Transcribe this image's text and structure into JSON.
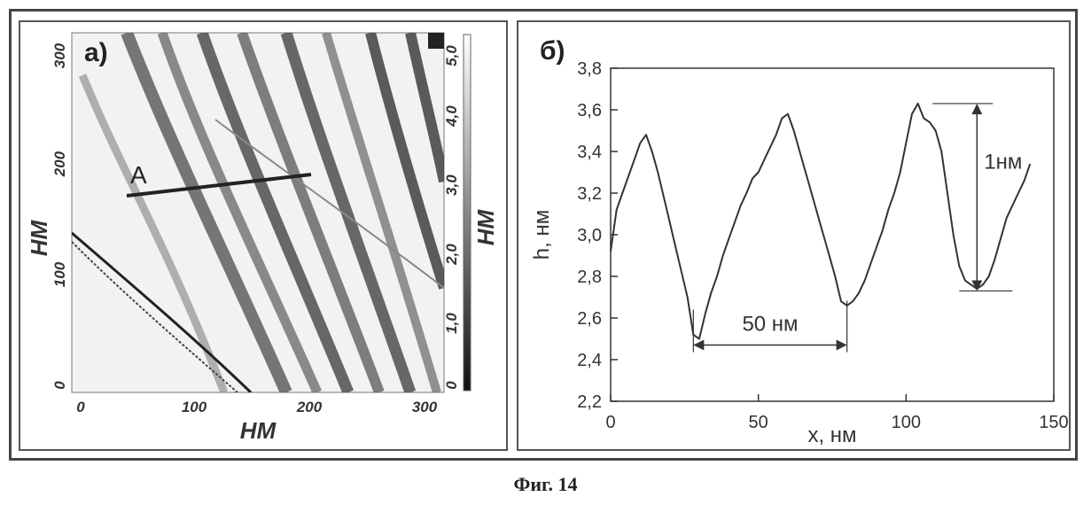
{
  "caption": "Фиг. 14",
  "panel_a": {
    "label": "а)",
    "profile_marker": "А",
    "x_axis": {
      "label": "НМ",
      "ticks": [
        "0",
        "100",
        "200",
        "300"
      ]
    },
    "y_axis": {
      "label": "НМ",
      "ticks": [
        "0",
        "100",
        "200",
        "300"
      ]
    },
    "colorbar": {
      "label": "НМ",
      "ticks": [
        "0",
        "1,0",
        "2,0",
        "3,0",
        "4,0",
        "5,0"
      ]
    }
  },
  "chart_data": {
    "type": "line",
    "panel_label": "б)",
    "xlabel": "x, нм",
    "ylabel": "h, нм",
    "xlim": [
      0,
      150
    ],
    "ylim": [
      2.2,
      3.8
    ],
    "x_ticks": [
      0,
      50,
      100,
      150
    ],
    "x_tick_labels": [
      "0",
      "50",
      "100",
      "150"
    ],
    "y_ticks": [
      2.2,
      2.4,
      2.6,
      2.8,
      3.0,
      3.2,
      3.4,
      3.6,
      3.8
    ],
    "y_tick_labels": [
      "2,2",
      "2,4",
      "2,6",
      "2,8",
      "3,0",
      "3,2",
      "3,4",
      "3,6",
      "3,8"
    ],
    "series": [
      {
        "x": [
          0,
          2,
          4,
          6,
          8,
          10,
          12,
          14,
          16,
          18,
          20,
          22,
          24,
          26,
          28,
          30,
          32,
          34,
          36,
          38,
          40,
          42,
          44,
          46,
          48,
          50,
          52,
          54,
          56,
          58,
          60,
          62,
          64,
          66,
          68,
          70,
          72,
          74,
          76,
          78,
          80,
          82,
          84,
          86,
          88,
          90,
          92,
          94,
          96,
          98,
          100,
          102,
          104,
          106,
          108,
          110,
          112,
          114,
          116,
          118,
          120,
          122,
          124,
          126,
          128,
          130,
          132,
          134,
          136,
          138,
          140,
          142
        ],
        "y": [
          2.92,
          3.12,
          3.2,
          3.28,
          3.36,
          3.44,
          3.48,
          3.4,
          3.3,
          3.18,
          3.06,
          2.94,
          2.82,
          2.7,
          2.52,
          2.5,
          2.62,
          2.72,
          2.8,
          2.9,
          2.98,
          3.06,
          3.14,
          3.2,
          3.27,
          3.3,
          3.36,
          3.42,
          3.48,
          3.56,
          3.58,
          3.5,
          3.4,
          3.3,
          3.2,
          3.1,
          3.0,
          2.9,
          2.8,
          2.68,
          2.66,
          2.68,
          2.72,
          2.78,
          2.86,
          2.94,
          3.02,
          3.12,
          3.2,
          3.3,
          3.44,
          3.58,
          3.63,
          3.56,
          3.54,
          3.5,
          3.4,
          3.2,
          3.0,
          2.85,
          2.78,
          2.76,
          2.74,
          2.76,
          2.8,
          2.88,
          2.98,
          3.08,
          3.14,
          3.2,
          3.26,
          3.34
        ]
      }
    ],
    "annotations": [
      {
        "text": "50 нм",
        "type": "span",
        "x_from": 28,
        "x_to": 80,
        "y": 2.47
      },
      {
        "text": "1нм",
        "type": "height",
        "x": 124,
        "y_from": 2.73,
        "y_to": 3.63
      }
    ]
  }
}
